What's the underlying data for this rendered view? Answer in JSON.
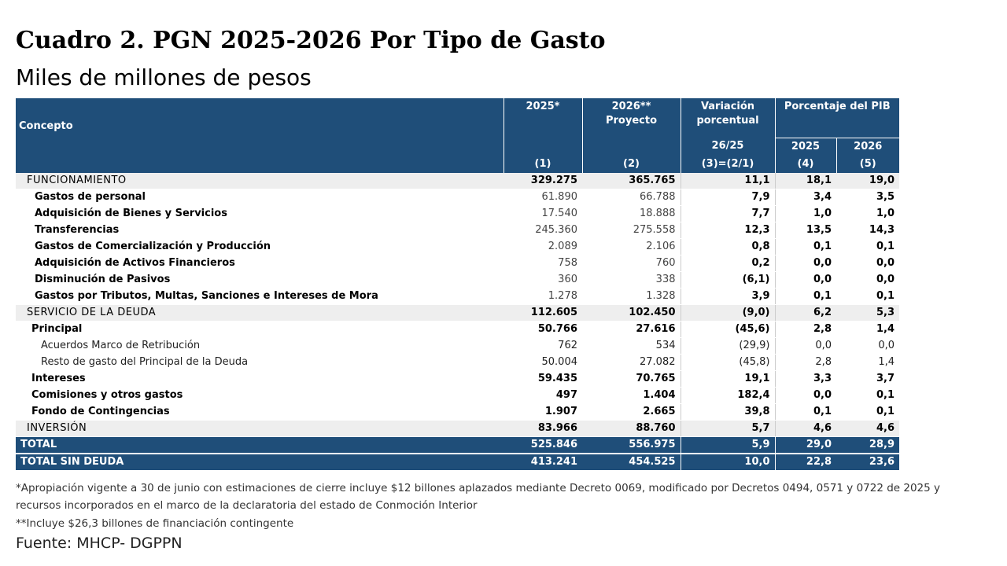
{
  "header": {
    "title": "Cuadro 2. PGN 2025-2026 Por Tipo de Gasto",
    "subtitle": "Miles de millones de pesos"
  },
  "table": {
    "columns": {
      "concept": "Concepto",
      "c1": "2025*",
      "c2_line1": "2026**",
      "c2_line2": "Proyecto",
      "c3_line1": "Variación porcentual",
      "c3_line2": "26/25",
      "pib": "Porcentaje del PIB",
      "c4": "2025",
      "c5": "2026",
      "n1": "(1)",
      "n2": "(2)",
      "n3": "(3)=(2/1)",
      "n4": "(4)",
      "n5": "(5)"
    },
    "rows": [
      [
        "FUNCIONAMIENTO",
        "329.275",
        "365.765",
        "11,1",
        "18,1",
        "19,0"
      ],
      [
        "Gastos de personal",
        "61.890",
        "66.788",
        "7,9",
        "3,4",
        "3,5"
      ],
      [
        "Adquisición de Bienes y Servicios",
        "17.540",
        "18.888",
        "7,7",
        "1,0",
        "1,0"
      ],
      [
        "Transferencias",
        "245.360",
        "275.558",
        "12,3",
        "13,5",
        "14,3"
      ],
      [
        "Gastos de Comercialización y Producción",
        "2.089",
        "2.106",
        "0,8",
        "0,1",
        "0,1"
      ],
      [
        "Adquisición de Activos Financieros",
        "758",
        "760",
        "0,2",
        "0,0",
        "0,0"
      ],
      [
        "Disminución de Pasivos",
        "360",
        "338",
        "(6,1)",
        "0,0",
        "0,0"
      ],
      [
        "Gastos por Tributos, Multas, Sanciones e Intereses de Mora",
        "1.278",
        "1.328",
        "3,9",
        "0,1",
        "0,1"
      ],
      [
        "SERVICIO DE LA DEUDA",
        "112.605",
        "102.450",
        "(9,0)",
        "6,2",
        "5,3"
      ],
      [
        "Principal",
        "50.766",
        "27.616",
        "(45,6)",
        "2,8",
        "1,4"
      ],
      [
        "Acuerdos Marco de Retribución",
        "762",
        "534",
        "(29,9)",
        "0,0",
        "0,0"
      ],
      [
        "Resto de gasto del Principal de la Deuda",
        "50.004",
        "27.082",
        "(45,8)",
        "2,8",
        "1,4"
      ],
      [
        "Intereses",
        "59.435",
        "70.765",
        "19,1",
        "3,3",
        "3,7"
      ],
      [
        "Comisiones y otros gastos",
        "497",
        "1.404",
        "182,4",
        "0,0",
        "0,1"
      ],
      [
        "Fondo de Contingencias",
        "1.907",
        "2.665",
        "39,8",
        "0,1",
        "0,1"
      ],
      [
        "INVERSIÓN",
        "83.966",
        "88.760",
        "5,7",
        "4,6",
        "4,6"
      ],
      [
        "TOTAL",
        "525.846",
        "556.975",
        "5,9",
        "29,0",
        "28,9"
      ],
      [
        "TOTAL SIN DEUDA",
        "413.241",
        "454.525",
        "10,0",
        "22,8",
        "23,6"
      ]
    ]
  },
  "notes": [
    "*Apropiación vigente a 30 de junio con estimaciones de cierre incluye $12 billones aplazados mediante Decreto 0069, modificado por Decretos 0494, 0571 y 0722 de 2025 y recursos incorporados en el marco de la declaratoria del estado de Conmoción Interior",
    "**Incluye $26,3 billones de financiación contingente"
  ],
  "source": "Fuente: MHCP- DGPPN"
}
